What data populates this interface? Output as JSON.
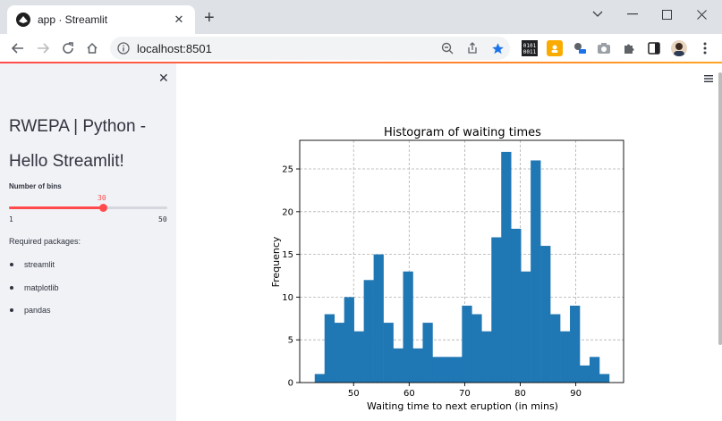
{
  "browser": {
    "tab_title": "app · Streamlit",
    "url": "localhost:8501"
  },
  "sidebar": {
    "title_line1": "RWEPA | Python -",
    "title_line2": "Hello Streamlit!",
    "slider": {
      "label": "Number of bins",
      "value": "30",
      "min": "1",
      "max": "50",
      "fraction": 0.592
    },
    "packages_label": "Required packages:",
    "packages": [
      "streamlit",
      "matplotlib",
      "pandas"
    ]
  },
  "colors": {
    "accent": "#ff4b4b",
    "bar": "#1f77b4",
    "sidebar_bg": "#f0f2f6"
  },
  "chart_data": {
    "type": "bar",
    "title": "Histogram of waiting times",
    "xlabel": "Waiting time to next eruption (in mins)",
    "ylabel": "Frequency",
    "bin_start": 43,
    "bin_width": 1.767,
    "counts": [
      1,
      8,
      7,
      10,
      6,
      12,
      15,
      7,
      4,
      13,
      4,
      7,
      3,
      3,
      3,
      9,
      8,
      6,
      17,
      27,
      18,
      13,
      26,
      16,
      8,
      6,
      9,
      2,
      3,
      1
    ],
    "xlim": [
      40.3,
      98.6
    ],
    "ylim": [
      0,
      28.35
    ],
    "xticks": [
      50,
      60,
      70,
      80,
      90
    ],
    "yticks": [
      0,
      5,
      10,
      15,
      20,
      25
    ],
    "grid": true,
    "legend": "none"
  }
}
